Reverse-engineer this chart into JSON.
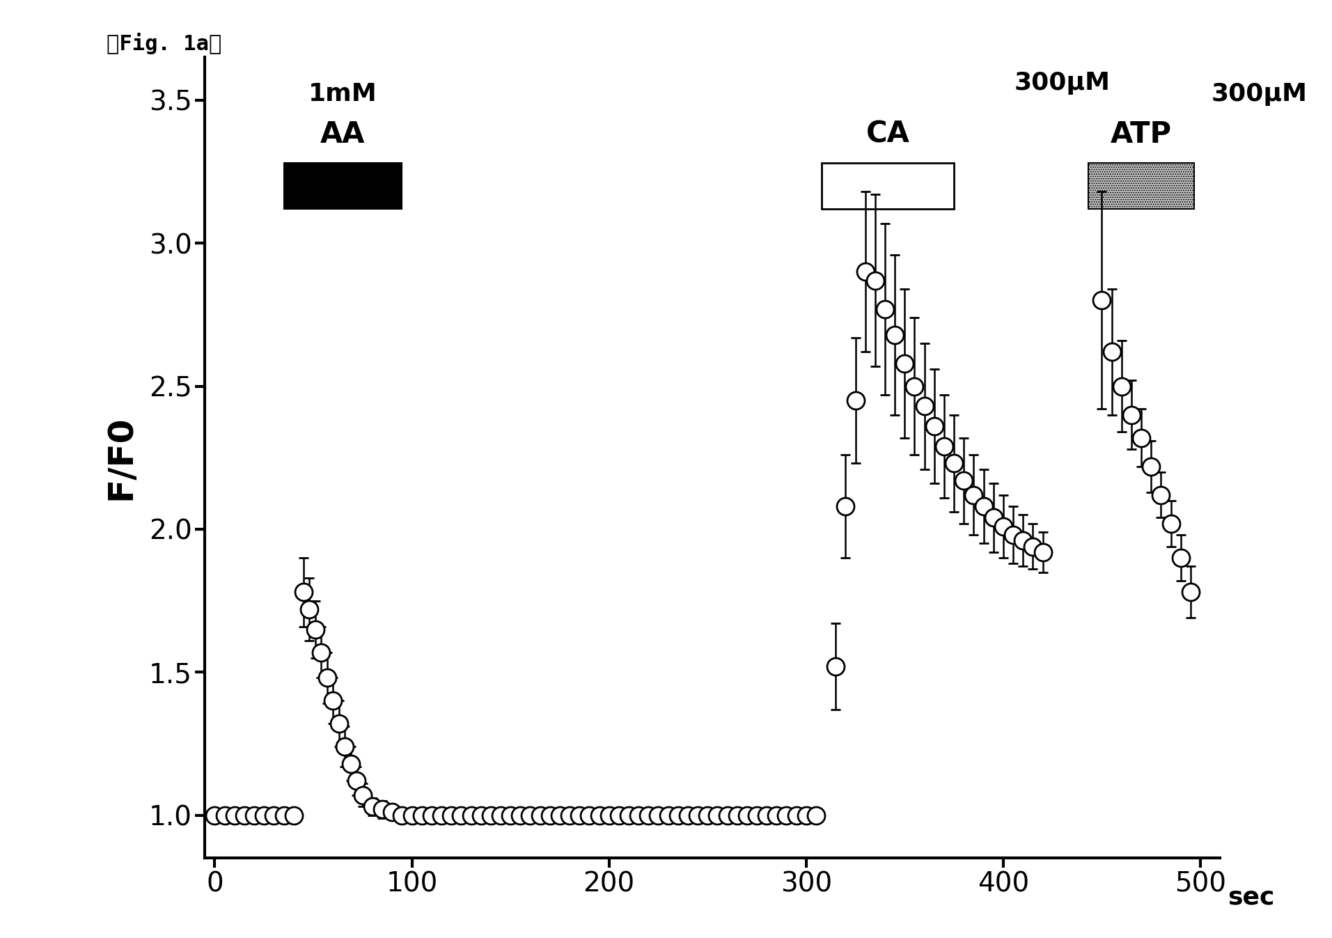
{
  "title": "『Fig. 1a』",
  "xlabel": "sec",
  "ylabel": "F/F0",
  "xlim": [
    -5,
    510
  ],
  "ylim": [
    0.85,
    3.65
  ],
  "yticks": [
    1.0,
    1.5,
    2.0,
    2.5,
    3.0,
    3.5
  ],
  "xticks": [
    0,
    100,
    200,
    300,
    400,
    500
  ],
  "background_color": "#ffffff",
  "aa_conc": "1mM",
  "aa_name": "AA",
  "ca_conc": "300μM",
  "ca_name": "CA",
  "atp_name": "ATP",
  "x": [
    0,
    5,
    10,
    15,
    20,
    25,
    30,
    35,
    40,
    45,
    48,
    51,
    54,
    57,
    60,
    63,
    66,
    69,
    72,
    75,
    80,
    85,
    90,
    95,
    100,
    105,
    110,
    115,
    120,
    125,
    130,
    135,
    140,
    145,
    150,
    155,
    160,
    165,
    170,
    175,
    180,
    185,
    190,
    195,
    200,
    205,
    210,
    215,
    220,
    225,
    230,
    235,
    240,
    245,
    250,
    255,
    260,
    265,
    270,
    275,
    280,
    285,
    290,
    295,
    300,
    305,
    315,
    320,
    325,
    330,
    335,
    340,
    345,
    350,
    355,
    360,
    365,
    370,
    375,
    380,
    385,
    390,
    395,
    400,
    405,
    410,
    415,
    420,
    450,
    455,
    460,
    465,
    470,
    475,
    480,
    485,
    490,
    495
  ],
  "y": [
    1.0,
    1.0,
    1.0,
    1.0,
    1.0,
    1.0,
    1.0,
    1.0,
    1.0,
    1.78,
    1.72,
    1.65,
    1.57,
    1.48,
    1.4,
    1.32,
    1.24,
    1.18,
    1.12,
    1.07,
    1.03,
    1.02,
    1.01,
    1.0,
    1.0,
    1.0,
    1.0,
    1.0,
    1.0,
    1.0,
    1.0,
    1.0,
    1.0,
    1.0,
    1.0,
    1.0,
    1.0,
    1.0,
    1.0,
    1.0,
    1.0,
    1.0,
    1.0,
    1.0,
    1.0,
    1.0,
    1.0,
    1.0,
    1.0,
    1.0,
    1.0,
    1.0,
    1.0,
    1.0,
    1.0,
    1.0,
    1.0,
    1.0,
    1.0,
    1.0,
    1.0,
    1.0,
    1.0,
    1.0,
    1.0,
    1.0,
    1.52,
    2.08,
    2.45,
    2.9,
    2.87,
    2.77,
    2.68,
    2.58,
    2.5,
    2.43,
    2.36,
    2.29,
    2.23,
    2.17,
    2.12,
    2.08,
    2.04,
    2.01,
    1.98,
    1.96,
    1.94,
    1.92,
    2.8,
    2.62,
    2.5,
    2.4,
    2.32,
    2.22,
    2.12,
    2.02,
    1.9,
    1.78
  ],
  "yerr": [
    0.02,
    0.02,
    0.02,
    0.02,
    0.02,
    0.02,
    0.02,
    0.02,
    0.02,
    0.12,
    0.11,
    0.1,
    0.09,
    0.09,
    0.08,
    0.08,
    0.07,
    0.06,
    0.05,
    0.04,
    0.03,
    0.03,
    0.02,
    0.02,
    0.02,
    0.02,
    0.02,
    0.02,
    0.02,
    0.02,
    0.02,
    0.02,
    0.02,
    0.02,
    0.02,
    0.02,
    0.02,
    0.02,
    0.02,
    0.02,
    0.02,
    0.02,
    0.02,
    0.02,
    0.02,
    0.02,
    0.02,
    0.02,
    0.02,
    0.02,
    0.02,
    0.02,
    0.02,
    0.02,
    0.02,
    0.02,
    0.02,
    0.02,
    0.02,
    0.02,
    0.02,
    0.02,
    0.02,
    0.02,
    0.02,
    0.02,
    0.15,
    0.18,
    0.22,
    0.28,
    0.3,
    0.3,
    0.28,
    0.26,
    0.24,
    0.22,
    0.2,
    0.18,
    0.17,
    0.15,
    0.14,
    0.13,
    0.12,
    0.11,
    0.1,
    0.09,
    0.08,
    0.07,
    0.38,
    0.22,
    0.16,
    0.12,
    0.1,
    0.09,
    0.08,
    0.08,
    0.08,
    0.09
  ]
}
